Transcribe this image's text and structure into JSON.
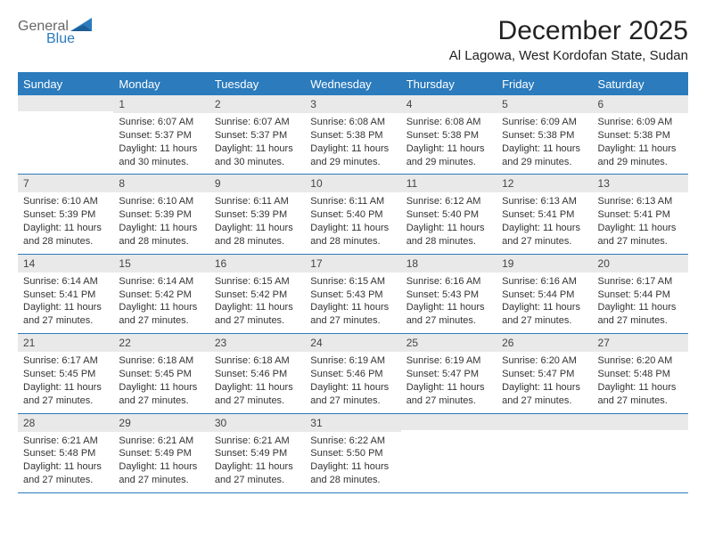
{
  "brand": {
    "word1": "General",
    "word2": "Blue",
    "icon_color": "#2b7bbd",
    "text_color1": "#666666",
    "text_color2": "#2b7bbd"
  },
  "title": "December 2025",
  "location": "Al Lagowa, West Kordofan State, Sudan",
  "colors": {
    "header_bg": "#2b7bbd",
    "header_fg": "#ffffff",
    "daynum_bg": "#e9e9e9",
    "daynum_fg": "#444444",
    "rule": "#2b7bbd",
    "body_text": "#333333",
    "page_bg": "#ffffff"
  },
  "typography": {
    "title_fontsize": 30,
    "location_fontsize": 15,
    "header_fontsize": 13,
    "daynum_fontsize": 12,
    "body_fontsize": 11
  },
  "day_headers": [
    "Sunday",
    "Monday",
    "Tuesday",
    "Wednesday",
    "Thursday",
    "Friday",
    "Saturday"
  ],
  "weeks": [
    [
      {
        "num": "",
        "lines": [
          "",
          "",
          "",
          ""
        ]
      },
      {
        "num": "1",
        "lines": [
          "Sunrise: 6:07 AM",
          "Sunset: 5:37 PM",
          "Daylight: 11 hours",
          "and 30 minutes."
        ]
      },
      {
        "num": "2",
        "lines": [
          "Sunrise: 6:07 AM",
          "Sunset: 5:37 PM",
          "Daylight: 11 hours",
          "and 30 minutes."
        ]
      },
      {
        "num": "3",
        "lines": [
          "Sunrise: 6:08 AM",
          "Sunset: 5:38 PM",
          "Daylight: 11 hours",
          "and 29 minutes."
        ]
      },
      {
        "num": "4",
        "lines": [
          "Sunrise: 6:08 AM",
          "Sunset: 5:38 PM",
          "Daylight: 11 hours",
          "and 29 minutes."
        ]
      },
      {
        "num": "5",
        "lines": [
          "Sunrise: 6:09 AM",
          "Sunset: 5:38 PM",
          "Daylight: 11 hours",
          "and 29 minutes."
        ]
      },
      {
        "num": "6",
        "lines": [
          "Sunrise: 6:09 AM",
          "Sunset: 5:38 PM",
          "Daylight: 11 hours",
          "and 29 minutes."
        ]
      }
    ],
    [
      {
        "num": "7",
        "lines": [
          "Sunrise: 6:10 AM",
          "Sunset: 5:39 PM",
          "Daylight: 11 hours",
          "and 28 minutes."
        ]
      },
      {
        "num": "8",
        "lines": [
          "Sunrise: 6:10 AM",
          "Sunset: 5:39 PM",
          "Daylight: 11 hours",
          "and 28 minutes."
        ]
      },
      {
        "num": "9",
        "lines": [
          "Sunrise: 6:11 AM",
          "Sunset: 5:39 PM",
          "Daylight: 11 hours",
          "and 28 minutes."
        ]
      },
      {
        "num": "10",
        "lines": [
          "Sunrise: 6:11 AM",
          "Sunset: 5:40 PM",
          "Daylight: 11 hours",
          "and 28 minutes."
        ]
      },
      {
        "num": "11",
        "lines": [
          "Sunrise: 6:12 AM",
          "Sunset: 5:40 PM",
          "Daylight: 11 hours",
          "and 28 minutes."
        ]
      },
      {
        "num": "12",
        "lines": [
          "Sunrise: 6:13 AM",
          "Sunset: 5:41 PM",
          "Daylight: 11 hours",
          "and 27 minutes."
        ]
      },
      {
        "num": "13",
        "lines": [
          "Sunrise: 6:13 AM",
          "Sunset: 5:41 PM",
          "Daylight: 11 hours",
          "and 27 minutes."
        ]
      }
    ],
    [
      {
        "num": "14",
        "lines": [
          "Sunrise: 6:14 AM",
          "Sunset: 5:41 PM",
          "Daylight: 11 hours",
          "and 27 minutes."
        ]
      },
      {
        "num": "15",
        "lines": [
          "Sunrise: 6:14 AM",
          "Sunset: 5:42 PM",
          "Daylight: 11 hours",
          "and 27 minutes."
        ]
      },
      {
        "num": "16",
        "lines": [
          "Sunrise: 6:15 AM",
          "Sunset: 5:42 PM",
          "Daylight: 11 hours",
          "and 27 minutes."
        ]
      },
      {
        "num": "17",
        "lines": [
          "Sunrise: 6:15 AM",
          "Sunset: 5:43 PM",
          "Daylight: 11 hours",
          "and 27 minutes."
        ]
      },
      {
        "num": "18",
        "lines": [
          "Sunrise: 6:16 AM",
          "Sunset: 5:43 PM",
          "Daylight: 11 hours",
          "and 27 minutes."
        ]
      },
      {
        "num": "19",
        "lines": [
          "Sunrise: 6:16 AM",
          "Sunset: 5:44 PM",
          "Daylight: 11 hours",
          "and 27 minutes."
        ]
      },
      {
        "num": "20",
        "lines": [
          "Sunrise: 6:17 AM",
          "Sunset: 5:44 PM",
          "Daylight: 11 hours",
          "and 27 minutes."
        ]
      }
    ],
    [
      {
        "num": "21",
        "lines": [
          "Sunrise: 6:17 AM",
          "Sunset: 5:45 PM",
          "Daylight: 11 hours",
          "and 27 minutes."
        ]
      },
      {
        "num": "22",
        "lines": [
          "Sunrise: 6:18 AM",
          "Sunset: 5:45 PM",
          "Daylight: 11 hours",
          "and 27 minutes."
        ]
      },
      {
        "num": "23",
        "lines": [
          "Sunrise: 6:18 AM",
          "Sunset: 5:46 PM",
          "Daylight: 11 hours",
          "and 27 minutes."
        ]
      },
      {
        "num": "24",
        "lines": [
          "Sunrise: 6:19 AM",
          "Sunset: 5:46 PM",
          "Daylight: 11 hours",
          "and 27 minutes."
        ]
      },
      {
        "num": "25",
        "lines": [
          "Sunrise: 6:19 AM",
          "Sunset: 5:47 PM",
          "Daylight: 11 hours",
          "and 27 minutes."
        ]
      },
      {
        "num": "26",
        "lines": [
          "Sunrise: 6:20 AM",
          "Sunset: 5:47 PM",
          "Daylight: 11 hours",
          "and 27 minutes."
        ]
      },
      {
        "num": "27",
        "lines": [
          "Sunrise: 6:20 AM",
          "Sunset: 5:48 PM",
          "Daylight: 11 hours",
          "and 27 minutes."
        ]
      }
    ],
    [
      {
        "num": "28",
        "lines": [
          "Sunrise: 6:21 AM",
          "Sunset: 5:48 PM",
          "Daylight: 11 hours",
          "and 27 minutes."
        ]
      },
      {
        "num": "29",
        "lines": [
          "Sunrise: 6:21 AM",
          "Sunset: 5:49 PM",
          "Daylight: 11 hours",
          "and 27 minutes."
        ]
      },
      {
        "num": "30",
        "lines": [
          "Sunrise: 6:21 AM",
          "Sunset: 5:49 PM",
          "Daylight: 11 hours",
          "and 27 minutes."
        ]
      },
      {
        "num": "31",
        "lines": [
          "Sunrise: 6:22 AM",
          "Sunset: 5:50 PM",
          "Daylight: 11 hours",
          "and 28 minutes."
        ]
      },
      {
        "num": "",
        "lines": [
          "",
          "",
          "",
          ""
        ]
      },
      {
        "num": "",
        "lines": [
          "",
          "",
          "",
          ""
        ]
      },
      {
        "num": "",
        "lines": [
          "",
          "",
          "",
          ""
        ]
      }
    ]
  ]
}
